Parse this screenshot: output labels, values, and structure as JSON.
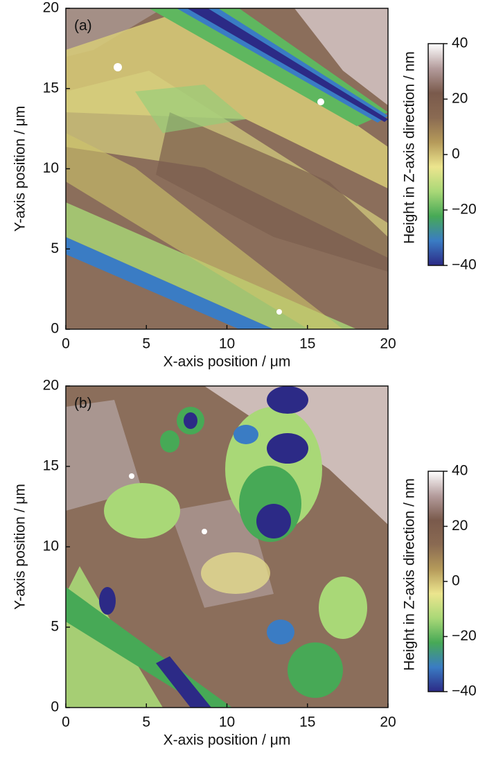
{
  "chart_data": [
    {
      "type": "heatmap",
      "title": "(a)",
      "x_label": "X-axis position / μm",
      "y_label": "Y-axis position / μm",
      "xlim": [
        0,
        20
      ],
      "ylim": [
        0,
        20
      ],
      "xticks": [
        0,
        5,
        10,
        15,
        20
      ],
      "yticks": [
        0,
        5,
        10,
        15,
        20
      ],
      "colorbar": {
        "label": "Height in Z-axis direction / nm",
        "lim": [
          -40,
          40
        ],
        "ticks": [
          40,
          20,
          0,
          {
            "value": -20,
            "label": "−20"
          },
          {
            "value": -40,
            "label": "−40"
          }
        ],
        "colors": [
          "#2c2a86",
          "#3a7cc4",
          "#47a956",
          "#a9d877",
          "#ece58e",
          "#b59a5a",
          "#8a6a52",
          "#7a5a4c",
          "#b49c9c",
          "#ffffff"
        ]
      }
    },
    {
      "type": "heatmap",
      "title": "(b)",
      "x_label": "X-axis position / μm",
      "y_label": "Y-axis position / μm",
      "xlim": [
        0,
        20
      ],
      "ylim": [
        0,
        20
      ],
      "xticks": [
        0,
        5,
        10,
        15,
        20
      ],
      "yticks": [
        0,
        5,
        10,
        15,
        20
      ],
      "colorbar": {
        "label": "Height in Z-axis direction / nm",
        "lim": [
          -40,
          40
        ],
        "ticks": [
          40,
          20,
          0,
          {
            "value": -20,
            "label": "−20"
          },
          {
            "value": -40,
            "label": "−40"
          }
        ],
        "colors": [
          "#2c2a86",
          "#3a7cc4",
          "#47a956",
          "#a9d877",
          "#ece58e",
          "#b59a5a",
          "#8a6a52",
          "#7a5a4c",
          "#b49c9c",
          "#ffffff"
        ]
      }
    }
  ]
}
